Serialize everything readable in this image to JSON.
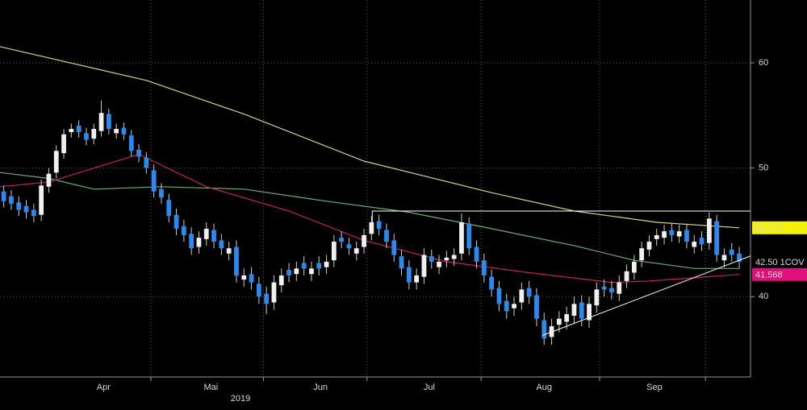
{
  "chart_data": {
    "type": "candlestick",
    "log_scale": true,
    "grid": true,
    "ylim": [
      34.8,
      66.9
    ],
    "yticks": [
      40,
      50,
      60
    ],
    "xlim": [
      -0.5,
      99.5
    ],
    "xticks": [
      {
        "value": 13.3,
        "label": "Apr"
      },
      {
        "value": 27.6,
        "label": "Mai"
      },
      {
        "value": 42.2,
        "label": "Jun"
      },
      {
        "value": 56.7,
        "label": "Jul"
      },
      {
        "value": 72,
        "label": "Aug"
      },
      {
        "value": 86.7,
        "label": "Sep"
      }
    ],
    "month_boundaries": [
      19.6,
      34.6,
      48.4,
      63.6,
      79.4,
      93.5
    ],
    "year_label": "2019",
    "up_color": "#f0f0f0",
    "down_color": "#2b8af0",
    "open": [
      48,
      47.6,
      47.1,
      46.8,
      46.5,
      46.1,
      48.4,
      49.6,
      51.3,
      53.2,
      53.8,
      53.1,
      52.6,
      53.3,
      54.9,
      53.1,
      53.6,
      52.9,
      51.6,
      50.9,
      49.8,
      48.2,
      47.3,
      46.1,
      45.2,
      44.6,
      43.6,
      44.2,
      44.9,
      44.1,
      43.1,
      43.6,
      41.2,
      41.6,
      40.9,
      40.2,
      39.6,
      40.8,
      41.9,
      41.6,
      42.4,
      41.6,
      42.4,
      42.1,
      42.6,
      44.3,
      43.8,
      43.1,
      43.6,
      44.6,
      45.6,
      44.9,
      44.1,
      42.9,
      42.1,
      41,
      41.4,
      42.9,
      42.1,
      42.6,
      42.7,
      43.1,
      45.4,
      43.6,
      42.6,
      41.4,
      40.6,
      39.7,
      39.2,
      39.6,
      40.6,
      40.1,
      38.4,
      37.3,
      38.1,
      38.3,
      38.7,
      39.6,
      38.4,
      39.4,
      40.7,
      40.6,
      40.2,
      41.1,
      41.7,
      42.6,
      43.4,
      44.2,
      44.3,
      44.9,
      44.4,
      44.9,
      43.6,
      44.3,
      43.9,
      45.6,
      42.6,
      43.4,
      43.1
    ],
    "high": [
      48.5,
      48.1,
      47.6,
      47.3,
      47,
      49,
      50,
      52,
      53.5,
      54,
      54.3,
      53.6,
      54,
      56.2,
      55.4,
      54,
      54.1,
      53.4,
      52.1,
      51.4,
      50.3,
      48.7,
      47.8,
      46.6,
      45.7,
      45.1,
      44.8,
      45.5,
      45.4,
      44.6,
      44,
      44.1,
      42,
      42.1,
      41.4,
      40.7,
      41.5,
      42,
      42.4,
      42.5,
      42.9,
      42.5,
      42.9,
      43,
      44.5,
      44.8,
      44.3,
      44,
      45,
      46,
      46.1,
      45.4,
      44.6,
      43.4,
      42.6,
      42,
      43.5,
      43.4,
      43,
      43.3,
      43.5,
      46.2,
      45.9,
      44.1,
      43.1,
      41.9,
      41.1,
      40.2,
      40,
      41,
      41.1,
      40.6,
      38.9,
      38.5,
      39,
      39.3,
      40,
      40.1,
      40,
      41,
      41.2,
      41.1,
      41.5,
      42.3,
      43,
      44,
      44.5,
      45,
      45.3,
      45.4,
      45.3,
      45.4,
      44.5,
      44.8,
      46.3,
      46.1,
      43.5,
      43.9,
      43.6
    ],
    "low": [
      46.7,
      46.5,
      46,
      45.8,
      45.5,
      45.6,
      47.9,
      49.1,
      50.8,
      52.7,
      52.7,
      52,
      52.1,
      52.8,
      53,
      52.6,
      52.5,
      51,
      50.5,
      49.5,
      47.5,
      47,
      45.5,
      44.5,
      44,
      43,
      43.1,
      43.7,
      43.5,
      43,
      42.6,
      41,
      40.7,
      40.5,
      39.5,
      38.8,
      39.1,
      40.3,
      41,
      41.1,
      41.5,
      41.1,
      41.5,
      41.6,
      42.1,
      43.5,
      43,
      42.6,
      43.1,
      44.1,
      44.5,
      43.5,
      42.5,
      41.5,
      40.5,
      40.5,
      40.9,
      42,
      41.6,
      42.1,
      42.2,
      42.6,
      43,
      42,
      41,
      40,
      39,
      38.5,
      38.7,
      39.1,
      39.5,
      38,
      36.8,
      36.8,
      37.6,
      37.8,
      38.2,
      38,
      37.9,
      38.9,
      40,
      39.8,
      39.7,
      40.6,
      41.2,
      42.1,
      42.9,
      43.7,
      43.8,
      44,
      43.9,
      43.5,
      43.1,
      43.3,
      43.4,
      42.5,
      42.1,
      42.5,
      42
    ],
    "close": [
      47.2,
      47,
      46.5,
      46.3,
      46,
      48.5,
      49.5,
      51.5,
      53,
      53.5,
      53.2,
      52.5,
      53.5,
      55,
      53.5,
      53.5,
      53,
      51.5,
      51,
      50,
      48,
      47.5,
      46,
      45,
      44.5,
      43.5,
      44.3,
      45,
      44,
      43.5,
      43.5,
      41.5,
      41.5,
      41,
      40,
      39.5,
      41,
      41.5,
      41.5,
      42,
      42,
      42,
      42,
      42.5,
      44,
      44,
      43.5,
      43.5,
      44.5,
      45.5,
      45,
      44,
      43,
      42,
      41,
      41.5,
      43,
      42.5,
      42.5,
      42.8,
      43,
      45.5,
      43.5,
      42.5,
      41.5,
      40.5,
      39.5,
      39,
      39.5,
      40.5,
      40,
      38.5,
      37.2,
      38,
      38.5,
      38.8,
      39.5,
      38.5,
      39.5,
      40.5,
      40.5,
      40.3,
      41,
      41.8,
      42.5,
      43.5,
      44,
      44.5,
      44.8,
      44.5,
      44.8,
      44,
      44,
      43.8,
      45.8,
      43,
      43,
      43,
      42.5
    ],
    "moving_averages": [
      {
        "color": "#d8d38a",
        "x": [
          -0.5,
          19,
          32,
          48,
          65,
          76,
          87,
          98
        ],
        "values": [
          61.7,
          58.2,
          54.9,
          50.6,
          47.9,
          46.4,
          45.5,
          45.071
        ]
      },
      {
        "color": "#6fae6f",
        "x": [
          -0.5,
          6,
          12,
          21,
          32,
          43,
          54,
          65,
          76,
          84,
          92,
          98
        ],
        "values": [
          49.6,
          49.1,
          48.2,
          48.4,
          48.2,
          47.2,
          46.3,
          45,
          43.7,
          42.6,
          42,
          42
        ]
      },
      {
        "color": "#c0206a",
        "x": [
          -0.5,
          6,
          18,
          27,
          38,
          48,
          59,
          70,
          81,
          86,
          98
        ],
        "values": [
          48.4,
          48.8,
          51.2,
          48.4,
          46.4,
          44.1,
          42.5,
          41.7,
          41,
          41.1,
          41.568
        ]
      }
    ],
    "trendlines": [
      {
        "color": "#ffffff",
        "x": [
          49.1,
          49.1,
          100.8
        ],
        "y": [
          45.4,
          46.4,
          46.4
        ]
      },
      {
        "color": "#ffffff",
        "x": [
          71.8,
          100.8
        ],
        "y": [
          37.4,
          43.2
        ]
      }
    ],
    "price_tags": [
      {
        "value": 45.071,
        "color": "#f2f20a",
        "text_color": "#000000"
      },
      {
        "value": 42.5,
        "label": "42.50 1COV",
        "color": "#000000",
        "text_color": "#ffffff"
      },
      {
        "value": 41.568,
        "color": "#e0107a",
        "text_color": "#ffffff"
      }
    ]
  }
}
